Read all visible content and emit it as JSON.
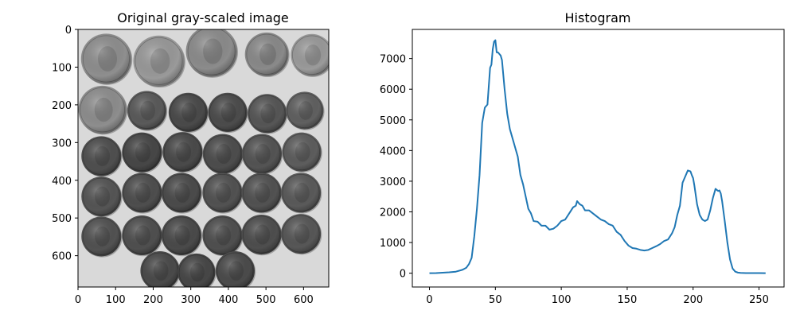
{
  "chart_data": [
    {
      "type": "image",
      "title": "Original gray-scaled image",
      "xlim": [
        0,
        667
      ],
      "ylim": [
        0,
        683
      ],
      "x_ticks": [
        "0",
        "100",
        "200",
        "300",
        "400",
        "500",
        "600"
      ],
      "y_ticks": [
        "0",
        "100",
        "200",
        "300",
        "400",
        "500",
        "600"
      ],
      "colormap": "gray",
      "coins": [
        {
          "x": 75,
          "y": 78,
          "r": 67,
          "shade": "#8f8f8f"
        },
        {
          "x": 215,
          "y": 84,
          "r": 68,
          "shade": "#9a9a9a"
        },
        {
          "x": 355,
          "y": 58,
          "r": 68,
          "shade": "#8c8c8c"
        },
        {
          "x": 502,
          "y": 66,
          "r": 58,
          "shade": "#8a8a8a"
        },
        {
          "x": 622,
          "y": 68,
          "r": 56,
          "shade": "#9b9b9b"
        },
        {
          "x": 65,
          "y": 213,
          "r": 64,
          "shade": "#8e8e8e"
        },
        {
          "x": 183,
          "y": 215,
          "r": 52,
          "shade": "#5a5a5a"
        },
        {
          "x": 293,
          "y": 220,
          "r": 52,
          "shade": "#4a4a4a"
        },
        {
          "x": 398,
          "y": 220,
          "r": 52,
          "shade": "#4c4c4c"
        },
        {
          "x": 503,
          "y": 223,
          "r": 52,
          "shade": "#565656"
        },
        {
          "x": 603,
          "y": 215,
          "r": 50,
          "shade": "#606060"
        },
        {
          "x": 62,
          "y": 336,
          "r": 53,
          "shade": "#4f4f4f"
        },
        {
          "x": 170,
          "y": 326,
          "r": 53,
          "shade": "#474747"
        },
        {
          "x": 278,
          "y": 325,
          "r": 53,
          "shade": "#4a4a4a"
        },
        {
          "x": 385,
          "y": 330,
          "r": 53,
          "shade": "#4d4d4d"
        },
        {
          "x": 489,
          "y": 330,
          "r": 53,
          "shade": "#545454"
        },
        {
          "x": 595,
          "y": 325,
          "r": 52,
          "shade": "#5d5d5d"
        },
        {
          "x": 62,
          "y": 443,
          "r": 53,
          "shade": "#555555"
        },
        {
          "x": 170,
          "y": 433,
          "r": 53,
          "shade": "#4e4e4e"
        },
        {
          "x": 275,
          "y": 433,
          "r": 53,
          "shade": "#4b4b4b"
        },
        {
          "x": 384,
          "y": 433,
          "r": 53,
          "shade": "#525252"
        },
        {
          "x": 488,
          "y": 433,
          "r": 53,
          "shade": "#525252"
        },
        {
          "x": 593,
          "y": 433,
          "r": 53,
          "shade": "#5a5a5a"
        },
        {
          "x": 62,
          "y": 549,
          "r": 53,
          "shade": "#525252"
        },
        {
          "x": 170,
          "y": 546,
          "r": 53,
          "shade": "#4f4f4f"
        },
        {
          "x": 275,
          "y": 546,
          "r": 53,
          "shade": "#4a4a4a"
        },
        {
          "x": 384,
          "y": 546,
          "r": 53,
          "shade": "#4f4f4f"
        },
        {
          "x": 488,
          "y": 544,
          "r": 53,
          "shade": "#4e4e4e"
        },
        {
          "x": 593,
          "y": 542,
          "r": 53,
          "shade": "#575757"
        },
        {
          "x": 218,
          "y": 640,
          "r": 52,
          "shade": "#4a4a4a"
        },
        {
          "x": 315,
          "y": 644,
          "r": 50,
          "shade": "#474747"
        },
        {
          "x": 418,
          "y": 640,
          "r": 52,
          "shade": "#4b4b4b"
        }
      ]
    },
    {
      "type": "line",
      "title": "Histogram",
      "xlim": [
        -13,
        269
      ],
      "ylim": [
        -450,
        7950
      ],
      "x_ticks": [
        0,
        50,
        100,
        150,
        200,
        250
      ],
      "y_ticks": [
        0,
        1000,
        2000,
        3000,
        4000,
        5000,
        6000,
        7000
      ],
      "line_color": "#1f77b4",
      "series": [
        {
          "x": [
            0,
            5,
            10,
            15,
            20,
            25,
            28,
            30,
            32,
            34,
            36,
            38,
            40,
            42,
            44,
            46,
            47,
            48,
            49,
            50,
            51,
            52,
            53,
            54,
            55,
            57,
            59,
            61,
            63,
            65,
            67,
            69,
            71,
            73,
            75,
            77,
            79,
            82,
            85,
            88,
            91,
            94,
            97,
            100,
            103,
            106,
            109,
            111,
            112,
            114,
            116,
            118,
            121,
            124,
            127,
            130,
            133,
            136,
            139,
            142,
            145,
            148,
            151,
            154,
            157,
            160,
            163,
            166,
            169,
            172,
            175,
            178,
            181,
            184,
            186,
            188,
            190,
            192,
            194,
            196,
            198,
            199,
            200,
            201,
            203,
            205,
            207,
            209,
            211,
            213,
            215,
            217,
            219,
            220,
            221,
            222,
            224,
            226,
            228,
            230,
            232,
            234,
            236,
            240,
            245,
            250,
            255
          ],
          "y": [
            0,
            5,
            15,
            30,
            50,
            110,
            180,
            300,
            500,
            1200,
            2100,
            3200,
            4900,
            5400,
            5500,
            6700,
            6800,
            7300,
            7550,
            7600,
            7200,
            7200,
            7150,
            7100,
            6950,
            6000,
            5200,
            4700,
            4400,
            4100,
            3800,
            3200,
            2900,
            2500,
            2100,
            1950,
            1700,
            1680,
            1550,
            1550,
            1420,
            1450,
            1550,
            1700,
            1750,
            1950,
            2150,
            2200,
            2350,
            2250,
            2200,
            2050,
            2050,
            1950,
            1850,
            1750,
            1700,
            1600,
            1550,
            1350,
            1250,
            1050,
            900,
            820,
            800,
            760,
            740,
            760,
            820,
            880,
            950,
            1050,
            1100,
            1300,
            1500,
            1900,
            2200,
            2950,
            3150,
            3350,
            3320,
            3200,
            3100,
            2850,
            2250,
            1900,
            1750,
            1700,
            1750,
            2050,
            2450,
            2750,
            2680,
            2700,
            2600,
            2350,
            1700,
            1000,
            450,
            150,
            50,
            20,
            10,
            5,
            5,
            5,
            0
          ]
        }
      ]
    }
  ]
}
